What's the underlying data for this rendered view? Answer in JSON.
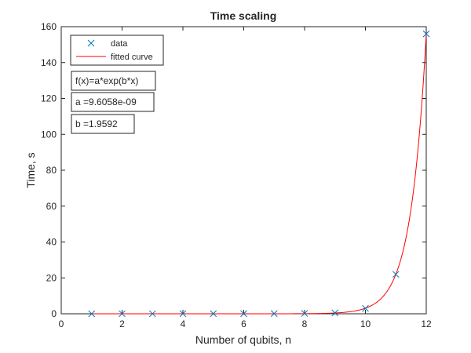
{
  "chart_data": {
    "type": "scatter",
    "title": "Time scaling",
    "xlabel": "Number of qubits, n",
    "ylabel": "Time, s",
    "xlim": [
      0,
      12
    ],
    "ylim": [
      0,
      160
    ],
    "xticks": [
      "0",
      "2",
      "4",
      "6",
      "8",
      "10",
      "12"
    ],
    "yticks": [
      "0",
      "20",
      "40",
      "60",
      "80",
      "100",
      "120",
      "140",
      "160"
    ],
    "grid": false,
    "legend_position": "top-left",
    "series": [
      {
        "name": "data",
        "kind": "marker",
        "marker": "x",
        "color": "#0072BD",
        "x": [
          1,
          2,
          3,
          4,
          5,
          6,
          7,
          8,
          9,
          10,
          11,
          12
        ],
        "y": [
          0.01,
          0.02,
          0.03,
          0.04,
          0.05,
          0.07,
          0.1,
          0.2,
          0.5,
          3.0,
          22.0,
          156.0
        ]
      },
      {
        "name": "fitted curve",
        "kind": "line",
        "color": "#FF0000",
        "function": {
          "a": 9.6058e-09,
          "b": 1.9592
        },
        "x_range": [
          1,
          12
        ]
      }
    ],
    "annotations": [
      "f(x)=a*exp(b*x)",
      "a =9.6058e-09",
      "b =1.9592"
    ]
  }
}
